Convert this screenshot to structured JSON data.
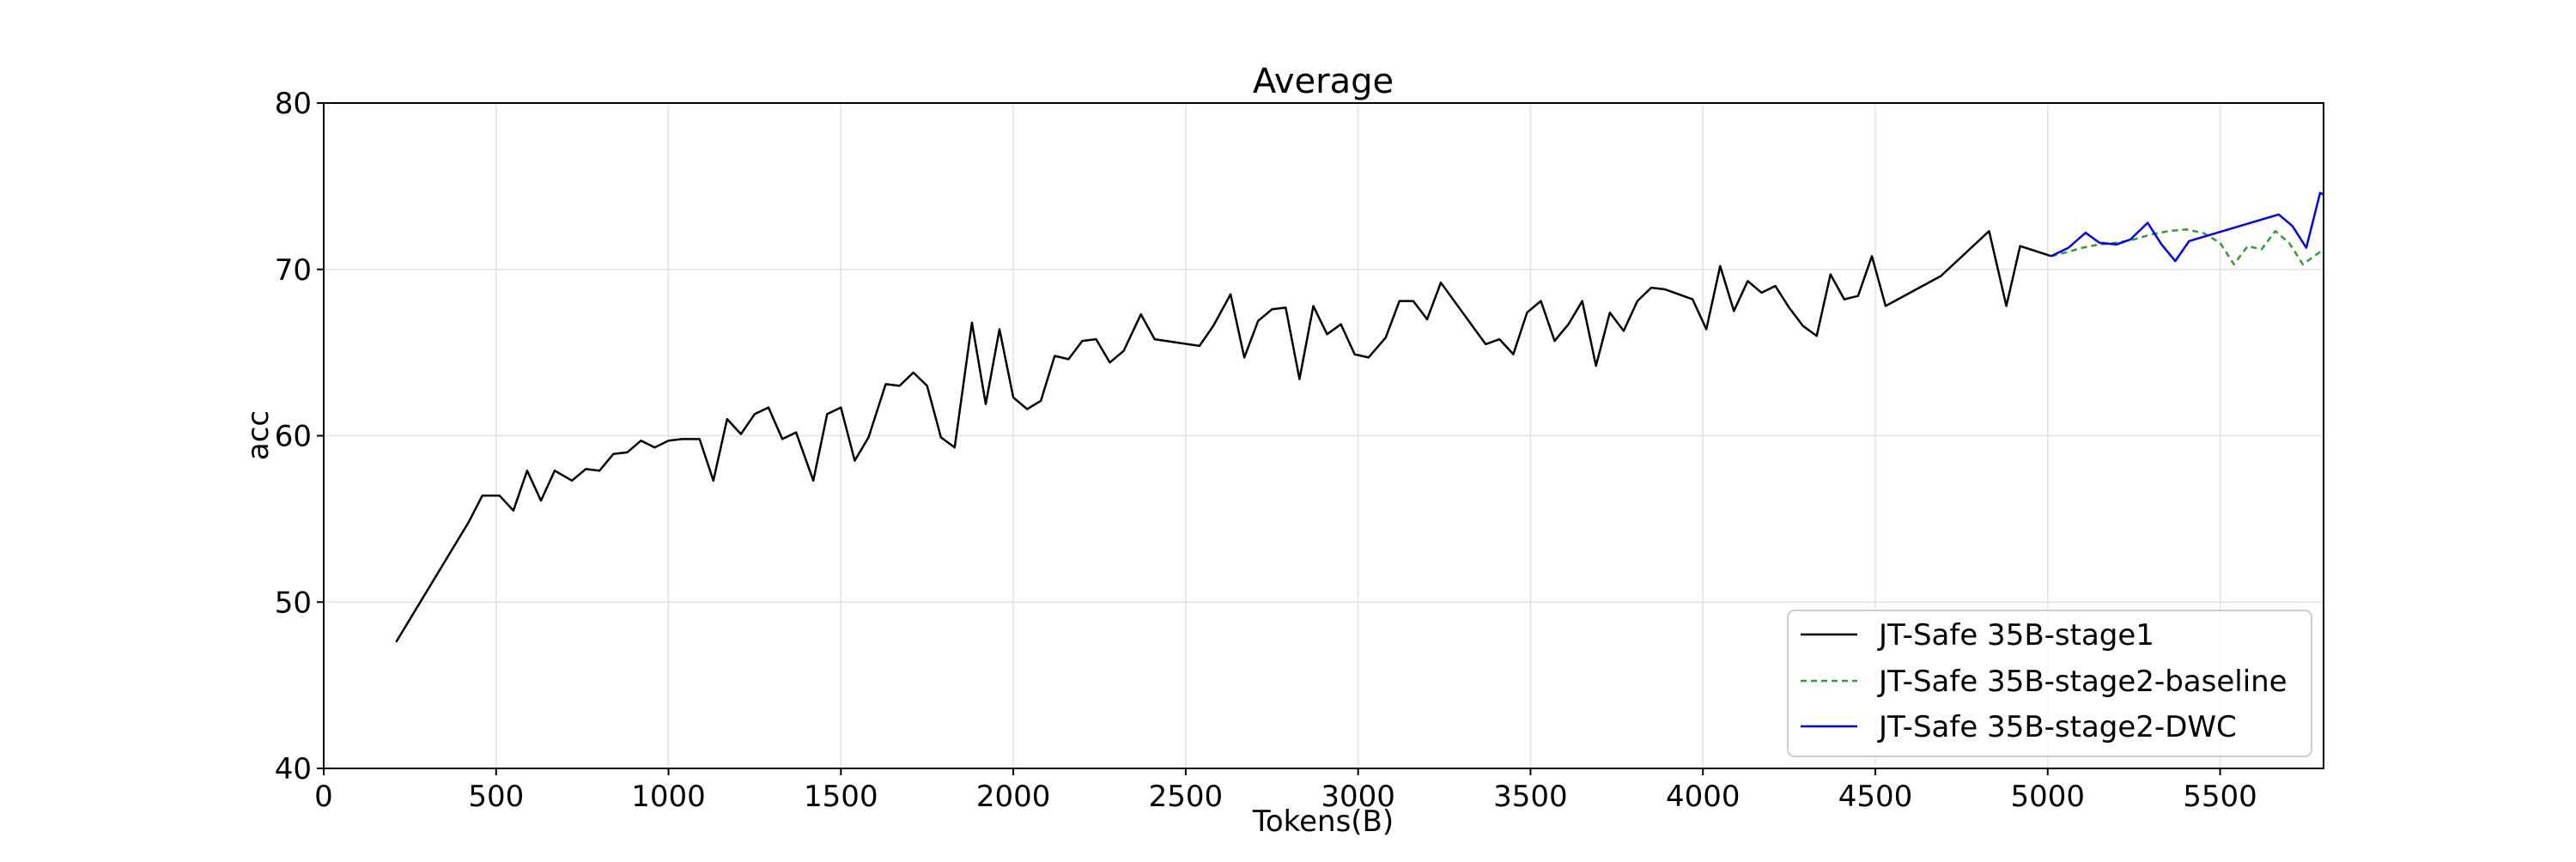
{
  "chart_data": {
    "type": "line",
    "title": "Average",
    "xlabel": "Tokens(B)",
    "ylabel": "acc",
    "xlim": [
      0,
      5800
    ],
    "ylim": [
      40,
      80
    ],
    "xticks": [
      0,
      500,
      1000,
      1500,
      2000,
      2500,
      3000,
      3500,
      4000,
      4500,
      5000,
      5500
    ],
    "yticks": [
      40,
      50,
      60,
      70,
      80
    ],
    "grid": true,
    "legend_position": "lower right",
    "series": [
      {
        "name": "JT-Safe 35B-stage1",
        "color": "#000000",
        "style": "solid",
        "points": [
          [
            210,
            47.6
          ],
          [
            420,
            54.8
          ],
          [
            460,
            56.4
          ],
          [
            510,
            56.4
          ],
          [
            550,
            55.5
          ],
          [
            590,
            57.9
          ],
          [
            630,
            56.1
          ],
          [
            670,
            57.9
          ],
          [
            720,
            57.3
          ],
          [
            760,
            58.0
          ],
          [
            800,
            57.9
          ],
          [
            840,
            58.9
          ],
          [
            880,
            59.0
          ],
          [
            920,
            59.7
          ],
          [
            960,
            59.3
          ],
          [
            1000,
            59.7
          ],
          [
            1040,
            59.8
          ],
          [
            1090,
            59.8
          ],
          [
            1130,
            57.3
          ],
          [
            1170,
            61.0
          ],
          [
            1210,
            60.1
          ],
          [
            1250,
            61.3
          ],
          [
            1290,
            61.7
          ],
          [
            1330,
            59.8
          ],
          [
            1370,
            60.2
          ],
          [
            1420,
            57.3
          ],
          [
            1460,
            61.3
          ],
          [
            1500,
            61.7
          ],
          [
            1540,
            58.5
          ],
          [
            1580,
            59.9
          ],
          [
            1630,
            63.1
          ],
          [
            1670,
            63.0
          ],
          [
            1710,
            63.8
          ],
          [
            1750,
            63.0
          ],
          [
            1790,
            59.9
          ],
          [
            1830,
            59.3
          ],
          [
            1880,
            66.8
          ],
          [
            1920,
            61.9
          ],
          [
            1960,
            66.4
          ],
          [
            2000,
            62.3
          ],
          [
            2040,
            61.6
          ],
          [
            2080,
            62.1
          ],
          [
            2120,
            64.8
          ],
          [
            2160,
            64.6
          ],
          [
            2200,
            65.7
          ],
          [
            2240,
            65.8
          ],
          [
            2280,
            64.4
          ],
          [
            2320,
            65.1
          ],
          [
            2370,
            67.3
          ],
          [
            2410,
            65.8
          ],
          [
            2540,
            65.4
          ],
          [
            2580,
            66.6
          ],
          [
            2630,
            68.5
          ],
          [
            2670,
            64.7
          ],
          [
            2710,
            66.9
          ],
          [
            2750,
            67.6
          ],
          [
            2790,
            67.7
          ],
          [
            2830,
            63.4
          ],
          [
            2870,
            67.8
          ],
          [
            2910,
            66.1
          ],
          [
            2950,
            66.7
          ],
          [
            2990,
            64.9
          ],
          [
            3030,
            64.7
          ],
          [
            3080,
            65.9
          ],
          [
            3120,
            68.1
          ],
          [
            3160,
            68.1
          ],
          [
            3200,
            67.0
          ],
          [
            3240,
            69.2
          ],
          [
            3370,
            65.5
          ],
          [
            3410,
            65.8
          ],
          [
            3450,
            64.9
          ],
          [
            3490,
            67.4
          ],
          [
            3530,
            68.1
          ],
          [
            3570,
            65.7
          ],
          [
            3610,
            66.7
          ],
          [
            3650,
            68.1
          ],
          [
            3690,
            64.2
          ],
          [
            3730,
            67.4
          ],
          [
            3770,
            66.3
          ],
          [
            3810,
            68.1
          ],
          [
            3850,
            68.9
          ],
          [
            3890,
            68.8
          ],
          [
            3930,
            68.5
          ],
          [
            3970,
            68.2
          ],
          [
            4010,
            66.4
          ],
          [
            4050,
            70.2
          ],
          [
            4090,
            67.5
          ],
          [
            4130,
            69.3
          ],
          [
            4170,
            68.6
          ],
          [
            4210,
            69.0
          ],
          [
            4250,
            67.7
          ],
          [
            4290,
            66.6
          ],
          [
            4330,
            66.0
          ],
          [
            4370,
            69.7
          ],
          [
            4410,
            68.2
          ],
          [
            4450,
            68.4
          ],
          [
            4490,
            70.8
          ],
          [
            4530,
            67.8
          ],
          [
            4690,
            69.6
          ],
          [
            4830,
            72.3
          ],
          [
            4880,
            67.8
          ],
          [
            4920,
            71.4
          ],
          [
            5010,
            70.8
          ]
        ]
      },
      {
        "name": "JT-Safe 35B-stage2-baseline",
        "color": "#2ca02c",
        "style": "dashed",
        "points": [
          [
            5010,
            70.8
          ],
          [
            5050,
            71.0
          ],
          [
            5100,
            71.3
          ],
          [
            5150,
            71.5
          ],
          [
            5200,
            71.6
          ],
          [
            5250,
            71.8
          ],
          [
            5300,
            72.1
          ],
          [
            5350,
            72.3
          ],
          [
            5400,
            72.4
          ],
          [
            5450,
            72.2
          ],
          [
            5500,
            71.6
          ],
          [
            5540,
            70.3
          ],
          [
            5580,
            71.4
          ],
          [
            5620,
            71.2
          ],
          [
            5660,
            72.3
          ],
          [
            5700,
            71.6
          ],
          [
            5740,
            70.3
          ],
          [
            5800,
            71.2
          ]
        ]
      },
      {
        "name": "JT-Safe 35B-stage2-DWC",
        "color": "#0000ff",
        "style": "solid",
        "points": [
          [
            5010,
            70.8
          ],
          [
            5060,
            71.3
          ],
          [
            5110,
            72.2
          ],
          [
            5150,
            71.6
          ],
          [
            5200,
            71.5
          ],
          [
            5240,
            71.8
          ],
          [
            5290,
            72.8
          ],
          [
            5330,
            71.5
          ],
          [
            5370,
            70.5
          ],
          [
            5410,
            71.7
          ],
          [
            5670,
            73.3
          ],
          [
            5710,
            72.6
          ],
          [
            5750,
            71.3
          ],
          [
            5790,
            74.6
          ],
          [
            5800,
            74.5
          ]
        ]
      }
    ]
  }
}
